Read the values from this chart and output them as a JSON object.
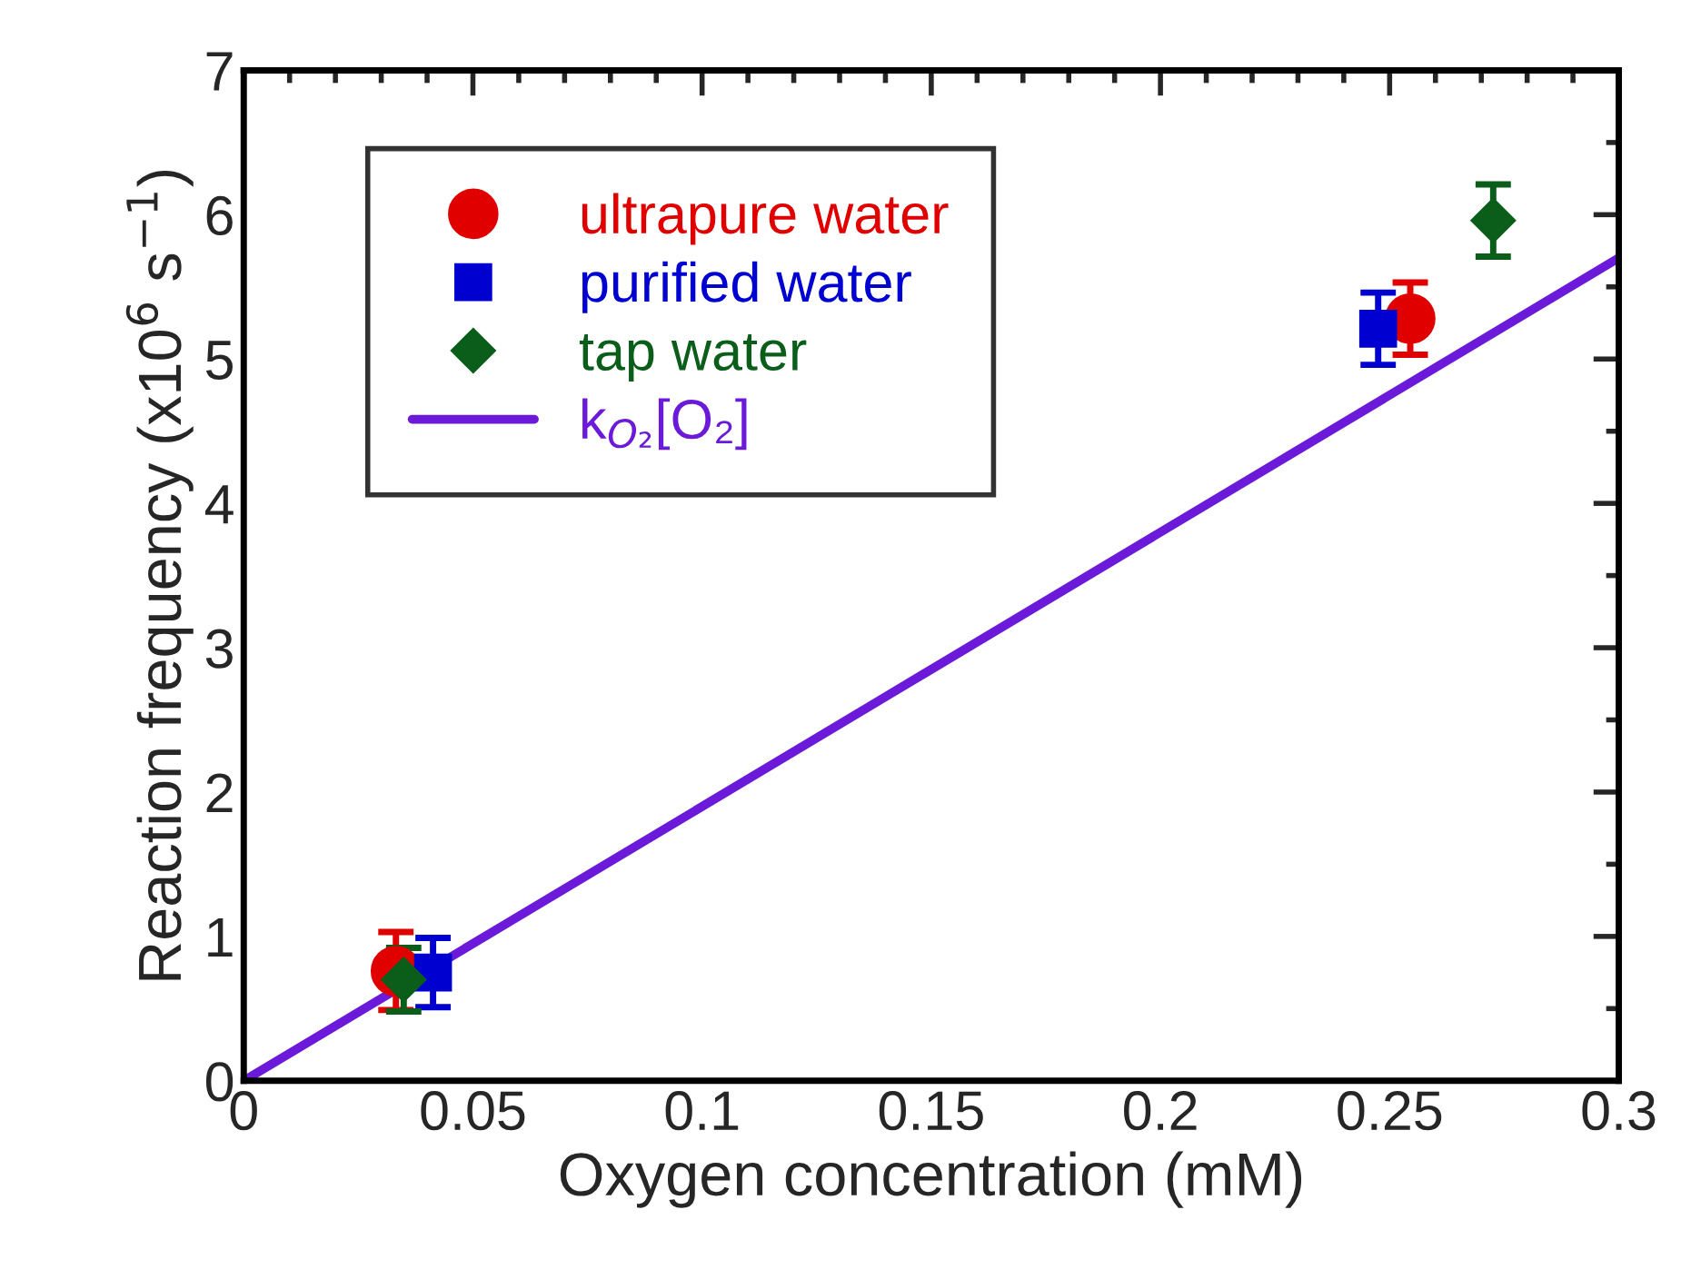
{
  "chart_data": {
    "type": "scatter",
    "xlabel": "Oxygen concentration (mM)",
    "ylabel": "Reaction frequency (x10$^{6}$ s$^{−1}$)",
    "xlim": [
      0,
      0.3
    ],
    "ylim": [
      0,
      7
    ],
    "xticks": [
      0,
      0.05,
      0.1,
      0.15,
      0.2,
      0.25,
      0.3
    ],
    "yticks": [
      0,
      1,
      2,
      3,
      4,
      5,
      6,
      7
    ],
    "grid": false,
    "legend": "top left",
    "series": [
      {
        "name": "ultrapure water",
        "color": "#e00000",
        "marker": "circle",
        "x": [
          0.0332,
          0.2545
        ],
        "values": [
          0.76,
          5.28
        ],
        "errors": [
          0.27,
          0.25
        ]
      },
      {
        "name": "purified water",
        "color": "#0000d0",
        "marker": "square",
        "x": [
          0.0413,
          0.2475
        ],
        "values": [
          0.75,
          5.21
        ],
        "errors": [
          0.24,
          0.25
        ]
      },
      {
        "name": "tap water",
        "color": "#0a5e1a",
        "marker": "diamond",
        "x": [
          0.0349,
          0.2726
        ],
        "values": [
          0.7,
          5.96
        ],
        "errors": [
          0.22,
          0.25
        ]
      },
      {
        "name": "k$_{O₂}$[O₂]",
        "type": "line",
        "color": "#6a1ad8",
        "marker": "none",
        "line_style": "solid",
        "x": [
          0,
          0.3
        ],
        "values": [
          0,
          5.7
        ]
      }
    ]
  }
}
